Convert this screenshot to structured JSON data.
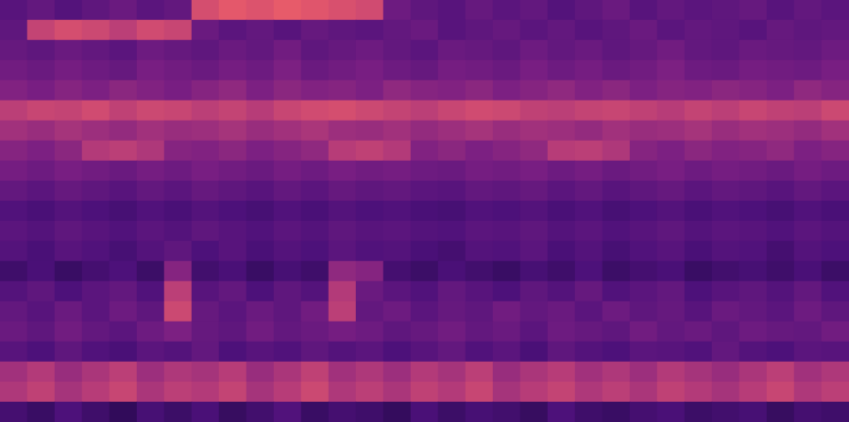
{
  "chart_data": {
    "type": "heatmap",
    "tick_labels": false,
    "grid": false,
    "zlim": [
      0,
      100
    ],
    "cells": [
      [
        28,
        31,
        27,
        30,
        33,
        29,
        31,
        58,
        62,
        60,
        63,
        61,
        59,
        57,
        34,
        30,
        28,
        32,
        29,
        31,
        27,
        30,
        33,
        28,
        31,
        29,
        30,
        32,
        28,
        31,
        29
      ],
      [
        30,
        54,
        58,
        56,
        52,
        57,
        55,
        33,
        29,
        31,
        28,
        32,
        30,
        29,
        31,
        33,
        28,
        30,
        32,
        29,
        31,
        28,
        30,
        33,
        29,
        31,
        30,
        28,
        32,
        30,
        31
      ],
      [
        32,
        30,
        33,
        31,
        29,
        34,
        32,
        30,
        33,
        31,
        35,
        30,
        32,
        34,
        31,
        29,
        33,
        32,
        30,
        34,
        31,
        33,
        30,
        32,
        35,
        31,
        30,
        33,
        32,
        31,
        34
      ],
      [
        35,
        33,
        36,
        34,
        32,
        37,
        35,
        33,
        36,
        34,
        38,
        33,
        35,
        37,
        34,
        32,
        36,
        35,
        33,
        37,
        34,
        36,
        33,
        35,
        38,
        34,
        33,
        36,
        35,
        34,
        37
      ],
      [
        39,
        37,
        40,
        38,
        41,
        39,
        37,
        40,
        42,
        38,
        41,
        39,
        40,
        38,
        42,
        40,
        39,
        41,
        38,
        40,
        42,
        39,
        41,
        38,
        40,
        39,
        41,
        40,
        38,
        42,
        40
      ],
      [
        52,
        55,
        54,
        57,
        53,
        56,
        55,
        52,
        54,
        51,
        55,
        57,
        58,
        56,
        54,
        52,
        55,
        57,
        56,
        53,
        52,
        54,
        55,
        53,
        51,
        54,
        52,
        55,
        53,
        52,
        56
      ],
      [
        46,
        44,
        47,
        45,
        43,
        46,
        44,
        45,
        47,
        44,
        46,
        48,
        45,
        44,
        46,
        43,
        45,
        47,
        44,
        46,
        45,
        43,
        46,
        44,
        45,
        47,
        44,
        46,
        45,
        43,
        46
      ],
      [
        40,
        38,
        41,
        50,
        52,
        49,
        40,
        39,
        41,
        38,
        40,
        42,
        51,
        53,
        50,
        39,
        41,
        38,
        40,
        42,
        51,
        52,
        49,
        40,
        38,
        41,
        39,
        40,
        42,
        38,
        40
      ],
      [
        36,
        34,
        37,
        35,
        33,
        36,
        34,
        37,
        35,
        33,
        36,
        34,
        37,
        35,
        36,
        34,
        33,
        36,
        35,
        37,
        34,
        36,
        33,
        35,
        37,
        34,
        36,
        35,
        33,
        36,
        34
      ],
      [
        31,
        29,
        32,
        30,
        28,
        31,
        29,
        32,
        30,
        28,
        31,
        29,
        32,
        30,
        31,
        29,
        28,
        31,
        30,
        32,
        29,
        31,
        28,
        30,
        32,
        29,
        31,
        30,
        28,
        31,
        29
      ],
      [
        26,
        24,
        27,
        25,
        23,
        26,
        24,
        27,
        25,
        23,
        26,
        24,
        27,
        25,
        26,
        24,
        23,
        26,
        25,
        27,
        24,
        26,
        23,
        25,
        27,
        24,
        26,
        25,
        23,
        26,
        24
      ],
      [
        29,
        27,
        30,
        28,
        26,
        29,
        27,
        30,
        28,
        26,
        29,
        27,
        30,
        28,
        29,
        27,
        26,
        29,
        28,
        30,
        27,
        29,
        26,
        28,
        30,
        27,
        29,
        28,
        26,
        29,
        27
      ],
      [
        27,
        24,
        28,
        26,
        23,
        27,
        30,
        25,
        28,
        24,
        27,
        25,
        29,
        26,
        27,
        24,
        22,
        27,
        26,
        29,
        24,
        27,
        23,
        26,
        28,
        24,
        27,
        26,
        22,
        27,
        25
      ],
      [
        20,
        24,
        18,
        22,
        25,
        19,
        40,
        21,
        24,
        18,
        23,
        20,
        42,
        40,
        22,
        19,
        24,
        21,
        18,
        23,
        20,
        25,
        19,
        22,
        24,
        18,
        21,
        23,
        20,
        24,
        19
      ],
      [
        27,
        30,
        25,
        29,
        31,
        26,
        52,
        28,
        31,
        25,
        30,
        27,
        50,
        33,
        29,
        26,
        31,
        28,
        25,
        30,
        27,
        32,
        26,
        29,
        31,
        25,
        28,
        30,
        27,
        31,
        26
      ],
      [
        31,
        28,
        33,
        29,
        34,
        30,
        56,
        32,
        29,
        33,
        30,
        35,
        52,
        31,
        34,
        29,
        32,
        30,
        35,
        31,
        33,
        29,
        34,
        30,
        32,
        28,
        33,
        31,
        29,
        34,
        30
      ],
      [
        33,
        30,
        35,
        31,
        29,
        34,
        38,
        32,
        30,
        35,
        31,
        33,
        36,
        34,
        30,
        32,
        35,
        31,
        33,
        29,
        34,
        32,
        30,
        35,
        31,
        33,
        30,
        34,
        32,
        31,
        35
      ],
      [
        28,
        25,
        30,
        26,
        24,
        29,
        27,
        31,
        25,
        28,
        26,
        30,
        27,
        29,
        25,
        28,
        31,
        26,
        29,
        24,
        30,
        27,
        25,
        29,
        28,
        26,
        31,
        27,
        25,
        29,
        28
      ],
      [
        46,
        50,
        44,
        48,
        52,
        45,
        49,
        47,
        51,
        44,
        48,
        53,
        46,
        49,
        45,
        50,
        47,
        52,
        44,
        48,
        51,
        46,
        49,
        45,
        50,
        47,
        44,
        48,
        52,
        46,
        49
      ],
      [
        49,
        53,
        47,
        51,
        55,
        48,
        52,
        50,
        54,
        47,
        51,
        56,
        49,
        52,
        48,
        53,
        50,
        55,
        47,
        51,
        54,
        49,
        52,
        48,
        53,
        50,
        47,
        51,
        55,
        49,
        52
      ],
      [
        22,
        18,
        25,
        20,
        15,
        23,
        19,
        24,
        17,
        21,
        26,
        18,
        22,
        20,
        16,
        24,
        19,
        23,
        21,
        17,
        25,
        20,
        18,
        22,
        24,
        19,
        21,
        23,
        17,
        22,
        20
      ]
    ]
  }
}
